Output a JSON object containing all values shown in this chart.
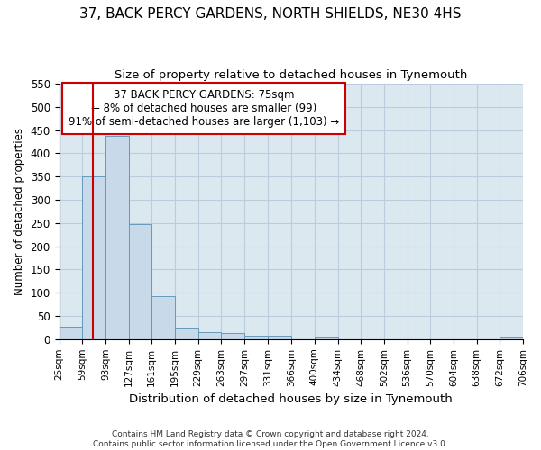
{
  "title": "37, BACK PERCY GARDENS, NORTH SHIELDS, NE30 4HS",
  "subtitle": "Size of property relative to detached houses in Tynemouth",
  "xlabel": "Distribution of detached houses by size in Tynemouth",
  "ylabel": "Number of detached properties",
  "bar_color": "#c8d9ea",
  "bar_edge_color": "#6699bb",
  "grid_color": "#bbccdd",
  "background_color": "#dce8f0",
  "fig_background": "#ffffff",
  "bin_edges": [
    25,
    59,
    93,
    127,
    161,
    195,
    229,
    263,
    297,
    331,
    366,
    400,
    434,
    468,
    502,
    536,
    570,
    604,
    638,
    672,
    706
  ],
  "bar_heights": [
    27,
    350,
    438,
    248,
    93,
    25,
    15,
    13,
    7,
    7,
    0,
    6,
    0,
    0,
    0,
    0,
    0,
    0,
    0,
    6
  ],
  "tick_labels": [
    "25sqm",
    "59sqm",
    "93sqm",
    "127sqm",
    "161sqm",
    "195sqm",
    "229sqm",
    "263sqm",
    "297sqm",
    "331sqm",
    "366sqm",
    "400sqm",
    "434sqm",
    "468sqm",
    "502sqm",
    "536sqm",
    "570sqm",
    "604sqm",
    "638sqm",
    "672sqm",
    "706sqm"
  ],
  "red_line_x": 75,
  "annotation_line1": "37 BACK PERCY GARDENS: 75sqm",
  "annotation_line2": "← 8% of detached houses are smaller (99)",
  "annotation_line3": "91% of semi-detached houses are larger (1,103) →",
  "annotation_box_color": "#ffffff",
  "annotation_border_color": "#cc0000",
  "footer_line1": "Contains HM Land Registry data © Crown copyright and database right 2024.",
  "footer_line2": "Contains public sector information licensed under the Open Government Licence v3.0.",
  "ylim": [
    0,
    550
  ],
  "yticks": [
    0,
    50,
    100,
    150,
    200,
    250,
    300,
    350,
    400,
    450,
    500,
    550
  ]
}
